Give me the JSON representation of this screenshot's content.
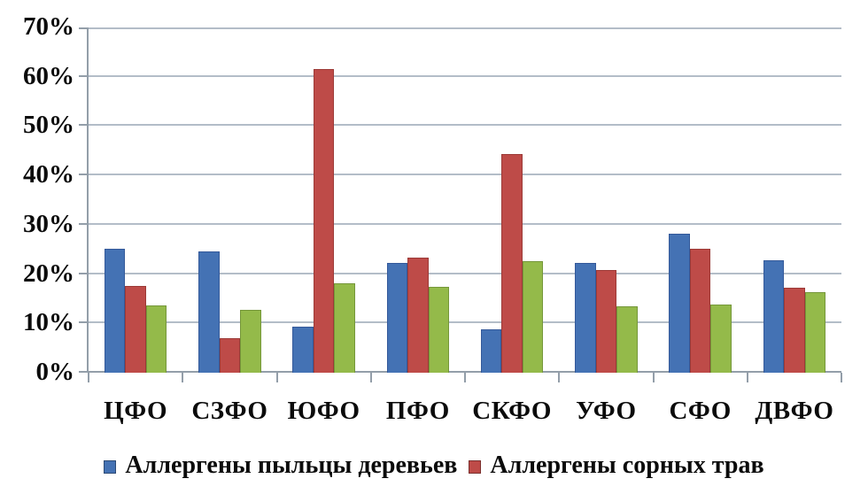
{
  "chart_data": {
    "type": "bar",
    "title": "",
    "categories": [
      "ЦФО",
      "СЗФО",
      "ЮФО",
      "ПФО",
      "СКФО",
      "УФО",
      "СФО",
      "ДВФО"
    ],
    "series": [
      {
        "name": "Аллергены пыльцы деревьев",
        "color": "#4472b4",
        "border_color": "#34599a",
        "values": [
          25.2,
          24.6,
          9.4,
          22.3,
          8.8,
          22.3,
          28.1,
          22.8
        ]
      },
      {
        "name": "Аллергены сорных трав",
        "color": "#be4b48",
        "border_color": "#9c3a37",
        "values": [
          17.6,
          7.0,
          61.5,
          23.4,
          44.3,
          20.9,
          25.2,
          17.2
        ]
      },
      {
        "name": "",
        "color": "#94ba4a",
        "border_color": "#75973a",
        "values": [
          13.7,
          12.7,
          18.2,
          17.4,
          22.7,
          13.5,
          13.9,
          16.3
        ]
      }
    ],
    "xlabel": "",
    "ylabel": "",
    "yticks": [
      0,
      10,
      20,
      30,
      40,
      50,
      60,
      70
    ],
    "ytick_labels": [
      "0%",
      "10%",
      "20%",
      "30%",
      "40%",
      "50%",
      "60%",
      "70%"
    ],
    "ylim": [
      0,
      70
    ],
    "grid": true,
    "legend_position": "bottom"
  },
  "legend": {
    "items": [
      {
        "label": "Аллергены пыльцы деревьев",
        "color": "#4472b4"
      },
      {
        "label": "Аллергены сорных трав",
        "color": "#be4b48"
      }
    ]
  }
}
